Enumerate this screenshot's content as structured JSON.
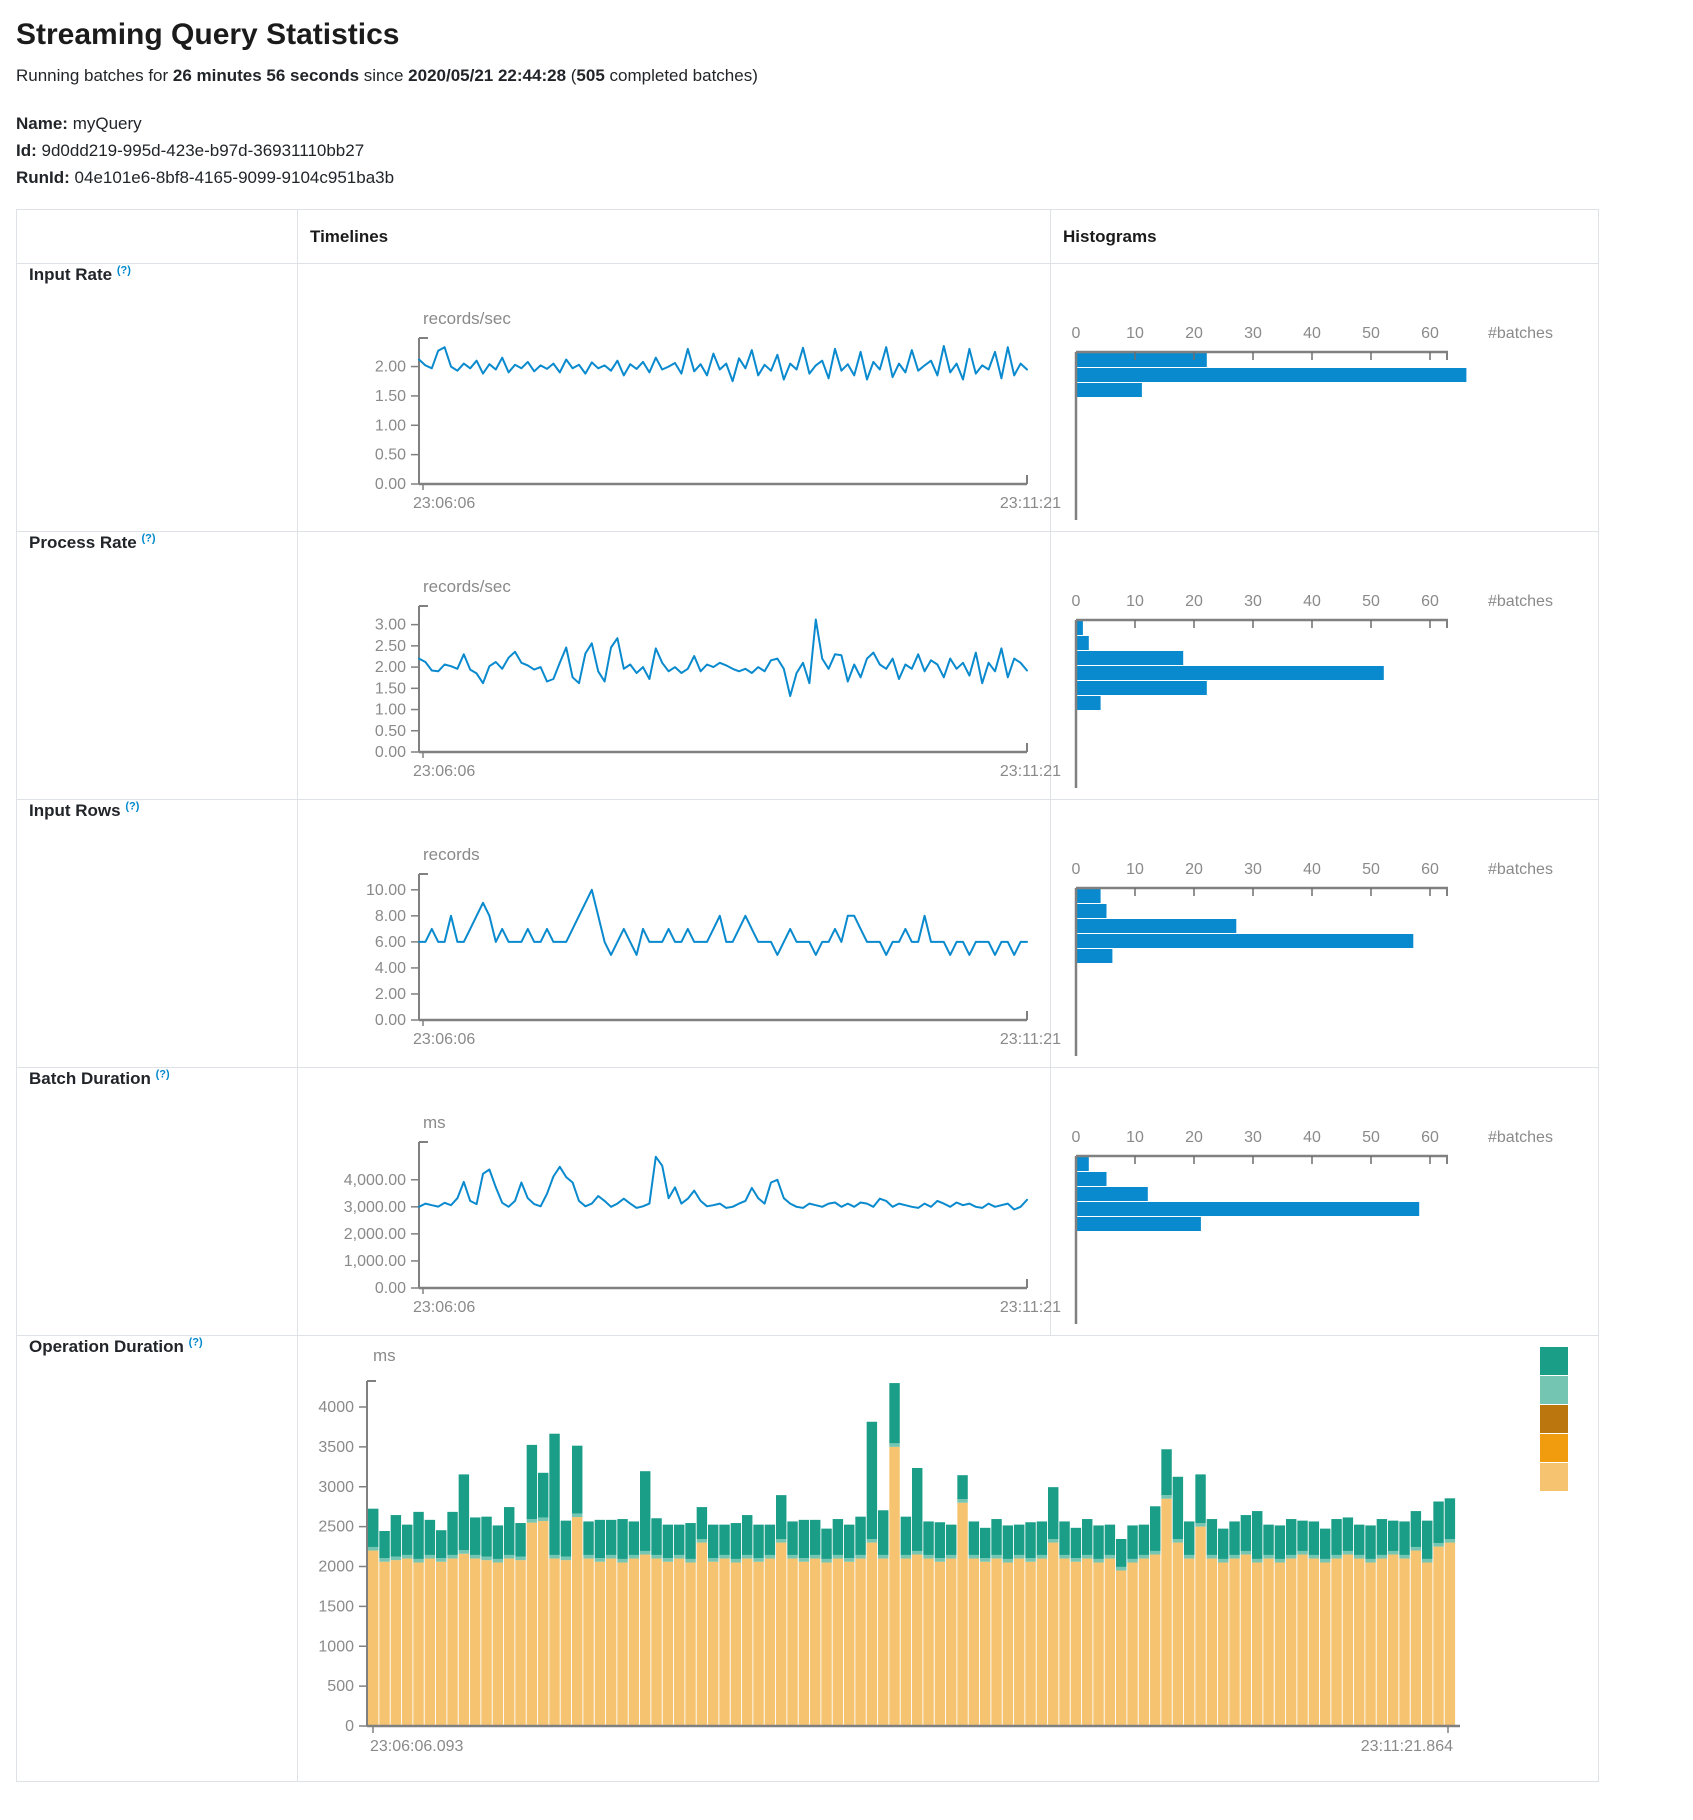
{
  "page": {
    "title": "Streaming Query Statistics",
    "subtitle": {
      "p1": "Running batches for ",
      "b1": "26 minutes 56 seconds",
      "p2": " since ",
      "b2": "2020/05/21 22:44:28",
      "p3": " (",
      "b3": "505",
      "p4": " completed batches)"
    },
    "meta": {
      "name_label": "Name:",
      "name_value": " myQuery",
      "id_label": "Id:",
      "id_value": " 9d0dd219-995d-423e-b97d-36931110bb27",
      "runid_label": "RunId:",
      "runid_value": " 04e101e6-8bf8-4165-9099-9104c951ba3b"
    }
  },
  "table": {
    "col_timelines": "Timelines",
    "col_histograms": "Histograms",
    "rows": [
      {
        "label": "Input Rate ",
        "help": "(?)"
      },
      {
        "label": "Process Rate ",
        "help": "(?)"
      },
      {
        "label": "Input Rows ",
        "help": "(?)"
      },
      {
        "label": "Batch Duration ",
        "help": "(?)"
      },
      {
        "label": "Operation Duration ",
        "help": "(?)"
      }
    ]
  },
  "colors": {
    "blue": "#0a8ace",
    "axis": "#808080",
    "tick_text": "#8a8a8a",
    "teal": "#1a9e87",
    "light_teal": "#74c6b2",
    "dark_gold": "#bb770e",
    "orange": "#f19c0f",
    "tan": "#f6c471",
    "help_blue": "#0088cc"
  },
  "chart_data": [
    {
      "id": "input-rate-timeline",
      "type": "line",
      "title": "Input Rate timeline",
      "ylabel": "records/sec",
      "x_start": "23:06:06",
      "x_end": "23:11:21",
      "ymax": 2.35,
      "grid": false,
      "yticks": [
        {
          "v": 2,
          "label": "2.00"
        },
        {
          "v": 1.5,
          "label": "1.50"
        },
        {
          "v": 1,
          "label": "1.00"
        },
        {
          "v": 0.5,
          "label": "0.50"
        },
        {
          "v": 0,
          "label": "0.00"
        }
      ],
      "values": [
        2.12,
        2.02,
        1.97,
        2.27,
        2.33,
        2.0,
        1.93,
        2.05,
        1.97,
        2.1,
        1.88,
        2.04,
        1.95,
        2.15,
        1.9,
        2.03,
        1.97,
        2.08,
        1.92,
        2.02,
        1.96,
        2.05,
        1.9,
        2.12,
        1.97,
        2.03,
        1.88,
        2.07,
        1.97,
        2.02,
        1.93,
        2.1,
        1.85,
        2.04,
        1.96,
        2.08,
        1.9,
        2.15,
        1.95,
        2.0,
        2.06,
        1.88,
        2.3,
        1.92,
        2.04,
        1.85,
        2.22,
        1.95,
        2.05,
        1.75,
        2.14,
        1.97,
        2.28,
        1.85,
        2.03,
        1.93,
        2.2,
        1.78,
        2.05,
        1.95,
        2.32,
        1.88,
        2.02,
        2.1,
        1.8,
        2.3,
        1.93,
        2.04,
        1.85,
        2.25,
        1.78,
        2.08,
        1.95,
        2.33,
        1.82,
        2.05,
        1.9,
        2.28,
        1.93,
        2.02,
        2.1,
        1.85,
        2.35,
        1.9,
        2.05,
        1.78,
        2.3,
        1.88,
        2.02,
        1.95,
        2.25,
        1.8,
        2.33,
        1.85,
        2.05,
        1.95
      ]
    },
    {
      "id": "input-rate-histogram",
      "type": "bar",
      "title": "Input Rate histogram",
      "xlabel": "#batches",
      "xticks": [
        0,
        10,
        20,
        30,
        40,
        50,
        60
      ],
      "counts": [
        22,
        66,
        11
      ]
    },
    {
      "id": "process-rate-timeline",
      "type": "line",
      "title": "Process Rate timeline",
      "ylabel": "records/sec",
      "x_start": "23:06:06",
      "x_end": "23:11:21",
      "ymax": 3.25,
      "grid": false,
      "yticks": [
        {
          "v": 3,
          "label": "3.00"
        },
        {
          "v": 2.5,
          "label": "2.50"
        },
        {
          "v": 2,
          "label": "2.00"
        },
        {
          "v": 1.5,
          "label": "1.50"
        },
        {
          "v": 1,
          "label": "1.00"
        },
        {
          "v": 0.5,
          "label": "0.50"
        },
        {
          "v": 0,
          "label": "0.00"
        }
      ],
      "values": [
        2.2,
        2.12,
        1.92,
        1.9,
        2.06,
        2.02,
        1.96,
        2.3,
        1.94,
        1.85,
        1.62,
        2.02,
        2.12,
        1.96,
        2.22,
        2.36,
        2.1,
        2.04,
        1.94,
        2.0,
        1.66,
        1.72,
        2.1,
        2.46,
        1.76,
        1.62,
        2.32,
        2.56,
        1.9,
        1.66,
        2.46,
        2.68,
        1.96,
        2.06,
        1.86,
        2.0,
        1.72,
        2.44,
        2.1,
        1.9,
        2.0,
        1.86,
        1.96,
        2.26,
        1.9,
        2.06,
        2.0,
        2.1,
        2.04,
        1.96,
        1.9,
        1.96,
        1.86,
        2.0,
        1.9,
        2.16,
        2.2,
        1.96,
        1.32,
        1.86,
        2.1,
        1.62,
        3.12,
        2.2,
        1.96,
        2.3,
        2.28,
        1.66,
        2.06,
        1.76,
        2.2,
        2.34,
        2.06,
        1.96,
        2.2,
        1.72,
        2.06,
        1.96,
        2.3,
        1.9,
        2.16,
        2.06,
        1.76,
        2.2,
        1.96,
        2.1,
        1.8,
        2.34,
        1.62,
        2.1,
        1.9,
        2.44,
        1.76,
        2.2,
        2.1,
        1.92
      ]
    },
    {
      "id": "process-rate-histogram",
      "type": "bar",
      "title": "Process Rate histogram",
      "xlabel": "#batches",
      "xticks": [
        0,
        10,
        20,
        30,
        40,
        50,
        60
      ],
      "counts": [
        1,
        2,
        18,
        52,
        22,
        4
      ]
    },
    {
      "id": "input-rows-timeline",
      "type": "line",
      "title": "Input Rows timeline",
      "ylabel": "records",
      "x_start": "23:06:06",
      "x_end": "23:11:21",
      "ymax": 10.6,
      "grid": false,
      "yticks": [
        {
          "v": 10,
          "label": "10.00"
        },
        {
          "v": 8,
          "label": "8.00"
        },
        {
          "v": 6,
          "label": "6.00"
        },
        {
          "v": 4,
          "label": "4.00"
        },
        {
          "v": 2,
          "label": "2.00"
        },
        {
          "v": 0,
          "label": "0.00"
        }
      ],
      "values": [
        6,
        6,
        7,
        6,
        6,
        8,
        6,
        6,
        7,
        8,
        9,
        8,
        6,
        7,
        6,
        6,
        6,
        7,
        6,
        6,
        7,
        6,
        6,
        6,
        7,
        8,
        9,
        10,
        8,
        6,
        5,
        6,
        7,
        6,
        5,
        7,
        6,
        6,
        6,
        7,
        6,
        6,
        7,
        6,
        6,
        6,
        7,
        8,
        6,
        6,
        7,
        8,
        7,
        6,
        6,
        6,
        5,
        6,
        7,
        6,
        6,
        6,
        5,
        6,
        6,
        7,
        6,
        8,
        8,
        7,
        6,
        6,
        6,
        5,
        6,
        6,
        7,
        6,
        6,
        8,
        6,
        6,
        6,
        5,
        6,
        6,
        5,
        6,
        6,
        6,
        5,
        6,
        6,
        5,
        6,
        6
      ]
    },
    {
      "id": "input-rows-histogram",
      "type": "bar",
      "title": "Input Rows histogram",
      "xlabel": "#batches",
      "xticks": [
        0,
        10,
        20,
        30,
        40,
        50,
        60
      ],
      "counts": [
        4,
        5,
        27,
        57,
        6
      ]
    },
    {
      "id": "batch-duration-timeline",
      "type": "line",
      "title": "Batch Duration timeline",
      "ylabel": "ms",
      "x_start": "23:06:06",
      "x_end": "23:11:21",
      "ymax": 5100,
      "grid": false,
      "yticks": [
        {
          "v": 4000,
          "label": "4,000.00"
        },
        {
          "v": 3000,
          "label": "3,000.00"
        },
        {
          "v": 2000,
          "label": "2,000.00"
        },
        {
          "v": 1000,
          "label": "1,000.00"
        },
        {
          "v": 0,
          "label": "0.00"
        }
      ],
      "values": [
        3000,
        3120,
        3060,
        3010,
        3150,
        3060,
        3320,
        3920,
        3220,
        3100,
        4220,
        4380,
        3720,
        3150,
        3000,
        3220,
        3900,
        3320,
        3100,
        3020,
        3480,
        4120,
        4480,
        4100,
        3900,
        3220,
        3020,
        3120,
        3400,
        3220,
        3000,
        3120,
        3300,
        3120,
        2960,
        3020,
        3120,
        4850,
        4520,
        3320,
        3720,
        3120,
        3300,
        3600,
        3220,
        3020,
        3060,
        3120,
        2960,
        3000,
        3120,
        3220,
        3700,
        3320,
        3120,
        3900,
        4000,
        3320,
        3120,
        3000,
        2960,
        3120,
        3060,
        3000,
        3120,
        3160,
        3000,
        3120,
        3000,
        3160,
        3120,
        3000,
        3300,
        3220,
        3000,
        3120,
        3060,
        3000,
        2960,
        3120,
        3000,
        3220,
        3120,
        3000,
        3160,
        3060,
        3120,
        3000,
        2960,
        3120,
        3000,
        3060,
        3120,
        2900,
        3000,
        3260
      ]
    },
    {
      "id": "batch-duration-histogram",
      "type": "bar",
      "title": "Batch Duration histogram",
      "xlabel": "#batches",
      "xticks": [
        0,
        10,
        20,
        30,
        40,
        50,
        60
      ],
      "counts": [
        2,
        5,
        12,
        58,
        21
      ]
    },
    {
      "id": "operation-duration",
      "type": "stacked-bar",
      "title": "Operation Duration",
      "ylabel": "ms",
      "x_start": "23:06:06.093",
      "x_end": "23:11:21.864",
      "ymax": 4000,
      "mid_value": 45,
      "yticks": [
        {
          "v": 4000,
          "label": "4000"
        },
        {
          "v": 3500,
          "label": "3500"
        },
        {
          "v": 3000,
          "label": "3000"
        },
        {
          "v": 2500,
          "label": "2500"
        },
        {
          "v": 2000,
          "label": "2000"
        },
        {
          "v": 1500,
          "label": "1500"
        },
        {
          "v": 1000,
          "label": "1000"
        },
        {
          "v": 500,
          "label": "500"
        },
        {
          "v": 0,
          "label": "0"
        }
      ],
      "legend_color_keys": [
        "teal",
        "light_teal",
        "dark_gold",
        "orange",
        "tan"
      ],
      "bars": [
        [
          2200,
          480
        ],
        [
          2060,
          340
        ],
        [
          2080,
          520
        ],
        [
          2100,
          380
        ],
        [
          2050,
          590
        ],
        [
          2100,
          440
        ],
        [
          2060,
          350
        ],
        [
          2100,
          540
        ],
        [
          2160,
          950
        ],
        [
          2100,
          470
        ],
        [
          2080,
          500
        ],
        [
          2050,
          420
        ],
        [
          2100,
          600
        ],
        [
          2080,
          420
        ],
        [
          2550,
          930
        ],
        [
          2570,
          560
        ],
        [
          2100,
          1520
        ],
        [
          2080,
          450
        ],
        [
          2620,
          850
        ],
        [
          2100,
          420
        ],
        [
          2060,
          480
        ],
        [
          2100,
          440
        ],
        [
          2050,
          500
        ],
        [
          2100,
          420
        ],
        [
          2150,
          1000
        ],
        [
          2100,
          460
        ],
        [
          2060,
          420
        ],
        [
          2100,
          380
        ],
        [
          2050,
          450
        ],
        [
          2300,
          400
        ],
        [
          2060,
          420
        ],
        [
          2100,
          380
        ],
        [
          2050,
          450
        ],
        [
          2100,
          500
        ],
        [
          2060,
          420
        ],
        [
          2100,
          380
        ],
        [
          2300,
          550
        ],
        [
          2100,
          420
        ],
        [
          2060,
          480
        ],
        [
          2100,
          440
        ],
        [
          2050,
          380
        ],
        [
          2100,
          450
        ],
        [
          2060,
          420
        ],
        [
          2100,
          480
        ],
        [
          2300,
          1470
        ],
        [
          2100,
          560
        ],
        [
          3500,
          755
        ],
        [
          2100,
          480
        ],
        [
          2150,
          1040
        ],
        [
          2100,
          420
        ],
        [
          2060,
          450
        ],
        [
          2100,
          380
        ],
        [
          2800,
          300
        ],
        [
          2100,
          420
        ],
        [
          2060,
          380
        ],
        [
          2100,
          450
        ],
        [
          2050,
          420
        ],
        [
          2100,
          380
        ],
        [
          2060,
          450
        ],
        [
          2100,
          420
        ],
        [
          2300,
          650
        ],
        [
          2100,
          420
        ],
        [
          2060,
          380
        ],
        [
          2100,
          450
        ],
        [
          2050,
          420
        ],
        [
          2100,
          380
        ],
        [
          1950,
          350
        ],
        [
          2050,
          420
        ],
        [
          2100,
          380
        ],
        [
          2150,
          560
        ],
        [
          2850,
          575
        ],
        [
          2300,
          780
        ],
        [
          2100,
          420
        ],
        [
          2500,
          610
        ],
        [
          2100,
          450
        ],
        [
          2050,
          380
        ],
        [
          2100,
          420
        ],
        [
          2150,
          450
        ],
        [
          2050,
          600
        ],
        [
          2100,
          380
        ],
        [
          2050,
          420
        ],
        [
          2100,
          450
        ],
        [
          2150,
          380
        ],
        [
          2100,
          420
        ],
        [
          2050,
          380
        ],
        [
          2100,
          450
        ],
        [
          2150,
          420
        ],
        [
          2100,
          380
        ],
        [
          2050,
          420
        ],
        [
          2100,
          450
        ],
        [
          2150,
          380
        ],
        [
          2100,
          420
        ],
        [
          2200,
          450
        ],
        [
          2050,
          480
        ],
        [
          2250,
          520
        ],
        [
          2300,
          510
        ]
      ]
    }
  ]
}
